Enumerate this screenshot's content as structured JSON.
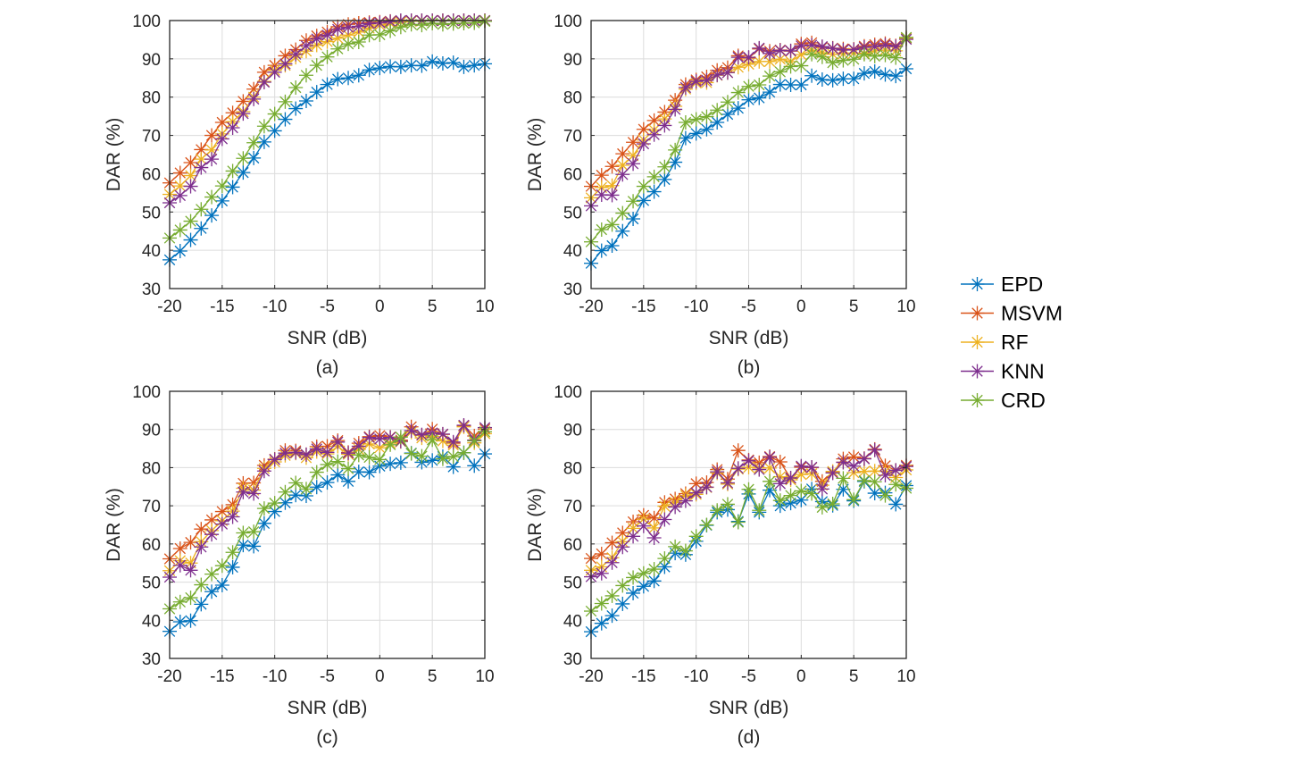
{
  "chart_data": [
    {
      "type": "line",
      "caption": "(a)",
      "xlabel": "SNR (dB)",
      "ylabel": "DAR (%)",
      "xlim": [
        -20,
        10
      ],
      "ylim": [
        30,
        100
      ],
      "xticks": [
        -20,
        -15,
        -10,
        -5,
        0,
        5,
        10
      ],
      "yticks": [
        30,
        40,
        50,
        60,
        70,
        80,
        90,
        100
      ],
      "grid": true,
      "x": [
        -20,
        -19,
        -18,
        -17,
        -16,
        -15,
        -14,
        -13,
        -12,
        -11,
        -10,
        -9,
        -8,
        -7,
        -6,
        -5,
        -4,
        -3,
        -2,
        -1,
        0,
        1,
        2,
        3,
        4,
        5,
        6,
        7,
        8,
        9,
        10
      ],
      "series": [
        {
          "name": "EPD",
          "values": [
            37.5,
            39.8,
            42.7,
            45.7,
            49.1,
            52.9,
            56.5,
            60.3,
            64.1,
            68.3,
            71.2,
            74.2,
            77.0,
            79.0,
            81.3,
            83.3,
            84.7,
            85.0,
            85.7,
            87.1,
            87.6,
            88.0,
            87.9,
            88.3,
            88.2,
            89.3,
            88.8,
            89.0,
            87.9,
            88.3,
            88.7
          ]
        },
        {
          "name": "MSVM",
          "values": [
            57.6,
            60.2,
            62.9,
            66.3,
            70.0,
            73.4,
            75.9,
            78.9,
            82.1,
            86.5,
            88.3,
            90.8,
            92.4,
            94.8,
            96.0,
            97.0,
            98.4,
            99.0,
            99.3,
            99.5,
            99.6,
            99.8,
            99.9,
            100,
            100,
            100,
            100,
            100,
            100,
            100,
            100
          ]
        },
        {
          "name": "RF",
          "values": [
            54.6,
            56.8,
            59.5,
            63.8,
            66.2,
            70.4,
            73.6,
            76.2,
            80.0,
            84.1,
            87.0,
            88.3,
            90.4,
            92.0,
            93.6,
            94.5,
            95.4,
            96.2,
            97.0,
            98.0,
            98.8,
            99.3,
            99.6,
            99.8,
            99.9,
            100,
            100,
            100,
            100,
            100,
            100
          ]
        },
        {
          "name": "KNN",
          "values": [
            52.4,
            54.3,
            56.7,
            61.6,
            63.8,
            69.1,
            72.0,
            75.7,
            79.5,
            83.9,
            86.5,
            88.7,
            91.2,
            93.4,
            95.2,
            96.2,
            97.7,
            98.2,
            98.5,
            99.2,
            99.4,
            99.7,
            100,
            100,
            100,
            100,
            100,
            100,
            100,
            100,
            100
          ]
        },
        {
          "name": "CRD",
          "values": [
            43.2,
            45.3,
            47.6,
            50.7,
            53.9,
            56.8,
            60.7,
            64.0,
            68.1,
            72.4,
            75.6,
            78.8,
            82.5,
            85.7,
            88.3,
            90.5,
            92.6,
            93.9,
            94.4,
            96.2,
            96.3,
            97.3,
            98.3,
            99.0,
            98.8,
            99.3,
            99.0,
            99.2,
            99.3,
            99.4,
            99.8
          ]
        }
      ]
    },
    {
      "type": "line",
      "caption": "(b)",
      "xlabel": "SNR (dB)",
      "ylabel": "DAR (%)",
      "xlim": [
        -20,
        10
      ],
      "ylim": [
        30,
        100
      ],
      "xticks": [
        -20,
        -15,
        -10,
        -5,
        0,
        5,
        10
      ],
      "yticks": [
        30,
        40,
        50,
        60,
        70,
        80,
        90,
        100
      ],
      "grid": true,
      "x": [
        -20,
        -19,
        -18,
        -17,
        -16,
        -15,
        -14,
        -13,
        -12,
        -11,
        -10,
        -9,
        -8,
        -7,
        -6,
        -5,
        -4,
        -3,
        -2,
        -1,
        0,
        1,
        2,
        3,
        4,
        5,
        6,
        7,
        8,
        9,
        10
      ],
      "series": [
        {
          "name": "EPD",
          "values": [
            36.6,
            39.9,
            41.2,
            45.0,
            48.2,
            53.0,
            55.3,
            58.5,
            63.0,
            69.3,
            70.5,
            71.6,
            73.4,
            75.5,
            77.1,
            79.3,
            79.8,
            81.3,
            83.3,
            83.2,
            83.2,
            85.6,
            84.6,
            84.4,
            84.8,
            84.8,
            86.2,
            86.7,
            85.9,
            85.5,
            87.4
          ]
        },
        {
          "name": "MSVM",
          "values": [
            56.7,
            59.6,
            61.9,
            65.2,
            68.2,
            71.6,
            73.9,
            76.1,
            79.2,
            83.3,
            84.5,
            85.3,
            87.0,
            87.7,
            90.8,
            90.2,
            92.6,
            92.0,
            92.3,
            92.0,
            93.9,
            94.2,
            93.0,
            92.8,
            92.6,
            92.5,
            93.3,
            93.7,
            94.0,
            93.4,
            95.5
          ]
        },
        {
          "name": "RF",
          "values": [
            53.7,
            56.4,
            56.9,
            62.2,
            64.7,
            68.8,
            71.4,
            74.3,
            77.6,
            82.1,
            83.7,
            83.8,
            85.7,
            86.4,
            87.8,
            88.6,
            89.3,
            89.3,
            89.9,
            89.3,
            91.1,
            92.3,
            91.6,
            91.2,
            91.3,
            91.5,
            91.4,
            92.1,
            92.3,
            92.1,
            95.3
          ]
        },
        {
          "name": "KNN",
          "values": [
            51.6,
            54.5,
            54.4,
            59.8,
            62.6,
            67.8,
            70.2,
            72.6,
            76.8,
            82.5,
            84.1,
            84.4,
            85.8,
            86.4,
            90.4,
            90.4,
            92.8,
            91.4,
            92.2,
            92.1,
            93.4,
            93.6,
            93.2,
            92.7,
            92.3,
            92.4,
            93.0,
            93.2,
            93.6,
            93.2,
            95.1
          ]
        },
        {
          "name": "CRD",
          "values": [
            42.2,
            45.4,
            46.7,
            49.7,
            52.8,
            56.7,
            59.2,
            61.8,
            66.2,
            73.4,
            74.2,
            74.9,
            76.6,
            78.7,
            81.2,
            82.8,
            83.2,
            85.5,
            86.6,
            88.0,
            88.2,
            91.2,
            90.5,
            89.0,
            89.6,
            89.9,
            91.2,
            90.7,
            91.0,
            90.3,
            95.6
          ]
        }
      ]
    },
    {
      "type": "line",
      "caption": "(c)",
      "xlabel": "SNR (dB)",
      "ylabel": "DAR (%)",
      "xlim": [
        -20,
        10
      ],
      "ylim": [
        30,
        100
      ],
      "xticks": [
        -20,
        -15,
        -10,
        -5,
        0,
        5,
        10
      ],
      "yticks": [
        30,
        40,
        50,
        60,
        70,
        80,
        90,
        100
      ],
      "grid": true,
      "x": [
        -20,
        -19,
        -18,
        -17,
        -16,
        -15,
        -14,
        -13,
        -12,
        -11,
        -10,
        -9,
        -8,
        -7,
        -6,
        -5,
        -4,
        -3,
        -2,
        -1,
        0,
        1,
        2,
        3,
        4,
        5,
        6,
        7,
        8,
        9,
        10
      ],
      "series": [
        {
          "name": "EPD",
          "values": [
            37.1,
            39.6,
            39.9,
            44.2,
            47.5,
            49.2,
            53.9,
            59.7,
            59.4,
            65.4,
            68.5,
            70.8,
            72.8,
            72.6,
            74.9,
            76.1,
            78.1,
            76.4,
            78.9,
            78.8,
            80.4,
            81.0,
            81.3,
            83.8,
            81.4,
            81.9,
            82.9,
            80.2,
            83.9,
            80.5,
            83.6
          ]
        },
        {
          "name": "MSVM",
          "values": [
            56.1,
            58.8,
            60.4,
            63.9,
            66.3,
            68.5,
            70.3,
            75.9,
            76.0,
            80.6,
            82.2,
            84.5,
            84.4,
            83.4,
            85.5,
            85.6,
            87.1,
            84.0,
            86.4,
            88.1,
            88.4,
            88.0,
            87.2,
            90.7,
            88.5,
            90.1,
            88.7,
            86.4,
            90.9,
            88.3,
            90.1
          ]
        },
        {
          "name": "RF",
          "values": [
            53.0,
            55.6,
            55.0,
            60.6,
            63.5,
            66.1,
            68.6,
            74.6,
            74.1,
            79.8,
            81.5,
            83.2,
            83.8,
            82.6,
            84.2,
            83.6,
            85.6,
            83.5,
            84.8,
            86.2,
            85.2,
            86.4,
            86.8,
            89.3,
            87.8,
            88.2,
            87.0,
            85.9,
            90.7,
            86.5,
            88.9
          ]
        },
        {
          "name": "KNN",
          "values": [
            51.3,
            54.4,
            53.1,
            59.2,
            62.5,
            65.2,
            67.1,
            73.6,
            73.2,
            79.1,
            82.1,
            83.8,
            84.0,
            83.4,
            84.9,
            84.0,
            86.7,
            83.8,
            85.6,
            87.9,
            87.5,
            87.9,
            86.9,
            89.7,
            88.6,
            89.1,
            88.8,
            86.7,
            91.1,
            87.2,
            90.5
          ]
        },
        {
          "name": "CRD",
          "values": [
            43.0,
            44.8,
            45.9,
            49.3,
            52.1,
            54.3,
            57.8,
            62.9,
            63.2,
            69.3,
            70.7,
            73.6,
            76.0,
            74.4,
            78.8,
            80.8,
            81.6,
            79.7,
            83.3,
            82.7,
            82.1,
            86.0,
            88.0,
            83.7,
            83.0,
            87.3,
            82.3,
            82.9,
            83.9,
            87.0,
            89.4
          ]
        }
      ]
    },
    {
      "type": "line",
      "caption": "(d)",
      "xlabel": "SNR (dB)",
      "ylabel": "DAR (%)",
      "xlim": [
        -20,
        10
      ],
      "ylim": [
        30,
        100
      ],
      "xticks": [
        -20,
        -15,
        -10,
        -5,
        0,
        5,
        10
      ],
      "yticks": [
        30,
        40,
        50,
        60,
        70,
        80,
        90,
        100
      ],
      "grid": true,
      "x": [
        -20,
        -19,
        -18,
        -17,
        -16,
        -15,
        -14,
        -13,
        -12,
        -11,
        -10,
        -9,
        -8,
        -7,
        -6,
        -5,
        -4,
        -3,
        -2,
        -1,
        0,
        1,
        2,
        3,
        4,
        5,
        6,
        7,
        8,
        9,
        10
      ],
      "series": [
        {
          "name": "EPD",
          "values": [
            37.0,
            39.2,
            41.2,
            44.3,
            47.1,
            48.9,
            50.3,
            54.0,
            57.6,
            57.2,
            60.7,
            64.9,
            68.3,
            69.0,
            65.9,
            73.1,
            68.3,
            74.1,
            70.0,
            70.7,
            71.5,
            74.4,
            71.1,
            70.1,
            74.3,
            71.3,
            76.4,
            73.3,
            73.4,
            70.4,
            75.3
          ]
        },
        {
          "name": "MSVM",
          "values": [
            56.2,
            57.4,
            60.3,
            62.9,
            65.8,
            67.5,
            66.8,
            70.9,
            71.8,
            73.2,
            75.8,
            76.1,
            79.5,
            77.0,
            84.5,
            82.0,
            81.3,
            82.9,
            81.5,
            77.2,
            80.1,
            80.0,
            76.4,
            78.7,
            82.3,
            82.8,
            82.4,
            84.8,
            80.5,
            79.3,
            80.6
          ]
        },
        {
          "name": "RF",
          "values": [
            53.1,
            54.0,
            56.4,
            60.6,
            64.1,
            66.5,
            64.2,
            69.9,
            70.9,
            72.7,
            73.0,
            74.8,
            78.6,
            75.7,
            79.6,
            80.1,
            79.9,
            79.9,
            77.6,
            76.8,
            78.2,
            78.4,
            75.4,
            79.0,
            81.4,
            78.7,
            79.0,
            79.1,
            79.0,
            77.4,
            79.4
          ]
        },
        {
          "name": "KNN",
          "values": [
            51.4,
            52.3,
            55.1,
            59.2,
            62.0,
            64.7,
            61.6,
            66.4,
            69.7,
            71.3,
            73.4,
            74.9,
            78.9,
            76.0,
            79.8,
            81.8,
            79.5,
            82.7,
            75.8,
            77.3,
            80.4,
            80.1,
            74.4,
            78.6,
            81.4,
            80.4,
            82.3,
            84.6,
            78.0,
            79.3,
            80.3
          ]
        },
        {
          "name": "CRD",
          "values": [
            42.4,
            44.4,
            46.4,
            49.1,
            51.2,
            52.3,
            53.4,
            56.2,
            59.3,
            58.2,
            62.0,
            65.0,
            68.8,
            70.4,
            65.7,
            74.3,
            68.8,
            76.4,
            71.4,
            72.7,
            73.9,
            73.2,
            69.6,
            70.5,
            77.2,
            71.6,
            76.6,
            76.3,
            72.7,
            75.6,
            74.6
          ]
        }
      ]
    }
  ],
  "legend": {
    "placement": "right",
    "entries": [
      {
        "name": "EPD",
        "color": "#0072BD",
        "marker": "asterisk"
      },
      {
        "name": "MSVM",
        "color": "#D95319",
        "marker": "asterisk"
      },
      {
        "name": "RF",
        "color": "#EDB120",
        "marker": "asterisk"
      },
      {
        "name": "KNN",
        "color": "#7E2F8E",
        "marker": "asterisk"
      },
      {
        "name": "CRD",
        "color": "#77AC30",
        "marker": "asterisk"
      }
    ]
  }
}
